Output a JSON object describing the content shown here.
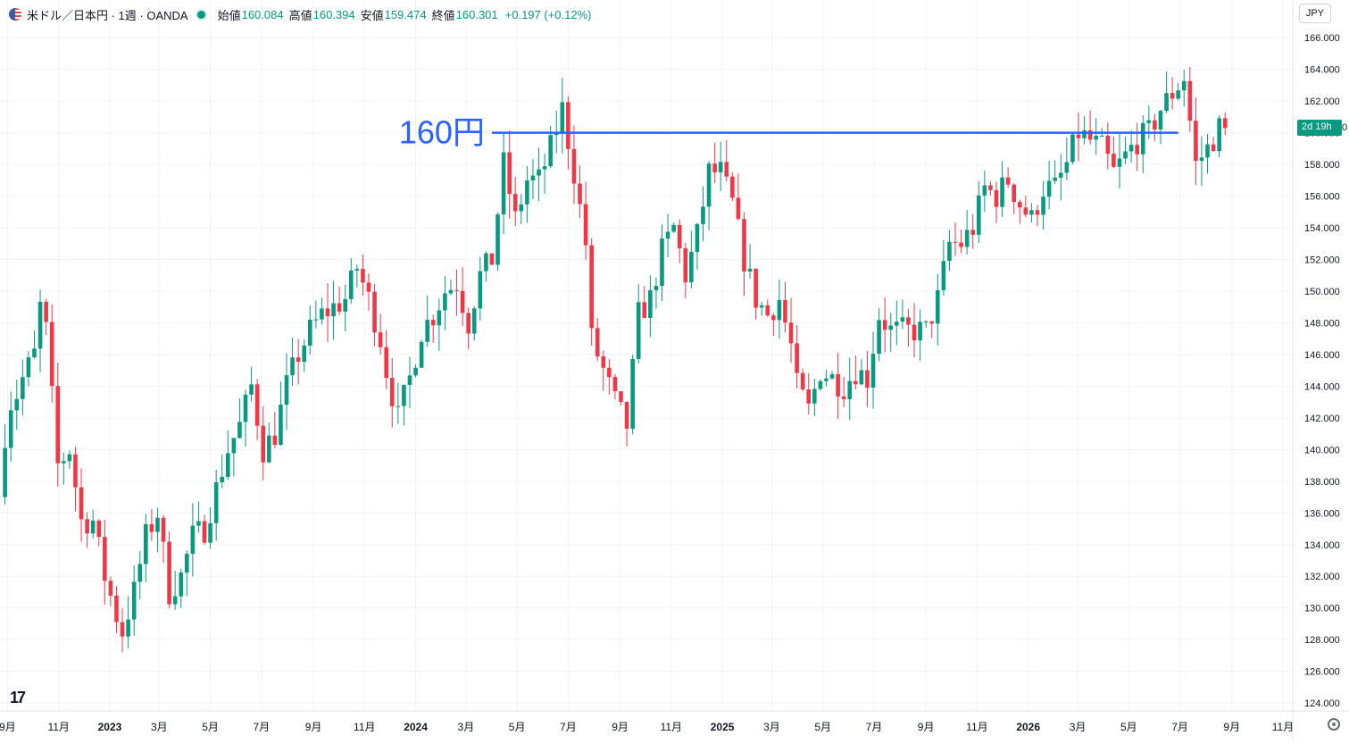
{
  "header": {
    "symbol": "米ドル／日本円 · 1週 · OANDA",
    "ohlc": [
      {
        "label": "始値",
        "value": "160.084"
      },
      {
        "label": "高値",
        "value": "160.394"
      },
      {
        "label": "安値",
        "value": "159.474"
      },
      {
        "label": "終値",
        "value": "160.301"
      }
    ],
    "change": "+0.197 (+0.12%)"
  },
  "currency_button": "JPY",
  "countdown_label": "2d 19h",
  "countdown_tail": "0",
  "colors": {
    "up": "#089981",
    "down": "#f23645",
    "line": "#2962ff",
    "grid": "#f0f3fa"
  },
  "icons": {
    "logo": "tradingview-logo-icon",
    "settings": "gear-icon",
    "flag": "us-flag-icon"
  },
  "logo_text": "17",
  "chart_data": {
    "type": "candlestick",
    "y_ticks": [
      "166.000",
      "164.000",
      "162.000",
      "160.000",
      "158.000",
      "156.000",
      "154.000",
      "152.000",
      "150.000",
      "148.000",
      "146.000",
      "144.000",
      "142.000",
      "140.000",
      "138.000",
      "136.000",
      "134.000",
      "132.000",
      "130.000",
      "128.000",
      "126.000",
      "124.000"
    ],
    "ylim": [
      123.5,
      166.8
    ],
    "x_ticks": [
      {
        "label": "9月",
        "date": "2022-09-01"
      },
      {
        "label": "11月",
        "date": "2022-11-01"
      },
      {
        "label": "2023",
        "date": "2023-01-01"
      },
      {
        "label": "3月",
        "date": "2023-03-01"
      },
      {
        "label": "5月",
        "date": "2023-05-01"
      },
      {
        "label": "7月",
        "date": "2023-07-01"
      },
      {
        "label": "9月",
        "date": "2023-09-01"
      },
      {
        "label": "11月",
        "date": "2023-11-01"
      },
      {
        "label": "2024",
        "date": "2024-01-01"
      },
      {
        "label": "3月",
        "date": "2024-03-01"
      },
      {
        "label": "5月",
        "date": "2024-05-01"
      },
      {
        "label": "7月",
        "date": "2024-07-01"
      },
      {
        "label": "9月",
        "date": "2024-09-01"
      },
      {
        "label": "11月",
        "date": "2024-11-01"
      },
      {
        "label": "2025",
        "date": "2025-01-01"
      },
      {
        "label": "3月",
        "date": "2025-03-01"
      },
      {
        "label": "5月",
        "date": "2025-05-01"
      },
      {
        "label": "7月",
        "date": "2025-07-01"
      },
      {
        "label": "9月",
        "date": "2025-09-01"
      },
      {
        "label": "11月",
        "date": "2025-11-01"
      },
      {
        "label": "2026",
        "date": "2026-01-01"
      },
      {
        "label": "3月",
        "date": "2026-03-01"
      },
      {
        "label": "5月",
        "date": "2026-05-01"
      },
      {
        "label": "7月",
        "date": "2026-07-01"
      },
      {
        "label": "9月",
        "date": "2026-09-01"
      },
      {
        "label": "11月",
        "date": "2026-11-01"
      }
    ],
    "series_path": [
      [
        "2022-08-29",
        137.0
      ],
      [
        "2022-09-05",
        141.0
      ],
      [
        "2022-09-12",
        143.0
      ],
      [
        "2022-09-19",
        143.5
      ],
      [
        "2022-09-26",
        144.5
      ],
      [
        "2022-10-10",
        146.0
      ],
      [
        "2022-10-17",
        149.0
      ],
      [
        "2022-10-24",
        147.5
      ],
      [
        "2022-11-07",
        139.0
      ],
      [
        "2022-11-21",
        140.0
      ],
      [
        "2022-12-05",
        135.5
      ],
      [
        "2022-12-19",
        135.5
      ],
      [
        "2023-01-02",
        132.0
      ],
      [
        "2023-01-16",
        129.5
      ],
      [
        "2023-01-23",
        128.5
      ],
      [
        "2023-02-06",
        131.0
      ],
      [
        "2023-02-20",
        134.5
      ],
      [
        "2023-03-06",
        136.0
      ],
      [
        "2023-03-20",
        131.0
      ],
      [
        "2023-04-03",
        132.0
      ],
      [
        "2023-04-17",
        134.5
      ],
      [
        "2023-05-01",
        135.0
      ],
      [
        "2023-05-15",
        137.5
      ],
      [
        "2023-05-29",
        140.0
      ],
      [
        "2023-06-12",
        141.5
      ],
      [
        "2023-06-26",
        144.0
      ],
      [
        "2023-07-10",
        140.0
      ],
      [
        "2023-07-24",
        141.0
      ],
      [
        "2023-08-07",
        144.0
      ],
      [
        "2023-08-21",
        146.0
      ],
      [
        "2023-09-04",
        147.5
      ],
      [
        "2023-09-18",
        148.5
      ],
      [
        "2023-10-02",
        149.0
      ],
      [
        "2023-10-16",
        149.5
      ],
      [
        "2023-10-30",
        151.5
      ],
      [
        "2023-11-13",
        149.5
      ],
      [
        "2023-11-27",
        147.0
      ],
      [
        "2023-12-04",
        145.0
      ],
      [
        "2023-12-18",
        142.0
      ],
      [
        "2024-01-01",
        144.5
      ],
      [
        "2024-01-15",
        147.5
      ],
      [
        "2024-01-29",
        148.5
      ],
      [
        "2024-02-12",
        150.0
      ],
      [
        "2024-02-26",
        150.5
      ],
      [
        "2024-03-11",
        148.0
      ],
      [
        "2024-03-25",
        151.0
      ],
      [
        "2024-04-08",
        152.0
      ],
      [
        "2024-04-22",
        158.0
      ],
      [
        "2024-05-06",
        154.5
      ],
      [
        "2024-05-20",
        157.0
      ],
      [
        "2024-06-03",
        157.0
      ],
      [
        "2024-06-17",
        159.0
      ],
      [
        "2024-07-01",
        161.5
      ],
      [
        "2024-07-15",
        157.5
      ],
      [
        "2024-07-29",
        153.0
      ],
      [
        "2024-08-05",
        147.0
      ],
      [
        "2024-08-19",
        145.0
      ],
      [
        "2024-09-02",
        143.0
      ],
      [
        "2024-09-16",
        141.5
      ],
      [
        "2024-09-30",
        148.5
      ],
      [
        "2024-10-14",
        149.5
      ],
      [
        "2024-10-28",
        152.5
      ],
      [
        "2024-11-11",
        154.0
      ],
      [
        "2024-11-25",
        151.0
      ],
      [
        "2024-12-09",
        153.5
      ],
      [
        "2024-12-23",
        157.5
      ],
      [
        "2025-01-06",
        157.5
      ],
      [
        "2025-01-20",
        155.5
      ],
      [
        "2025-02-03",
        152.0
      ],
      [
        "2025-02-17",
        149.5
      ],
      [
        "2025-03-03",
        148.5
      ],
      [
        "2025-03-17",
        149.5
      ],
      [
        "2025-03-31",
        146.5
      ],
      [
        "2025-04-07",
        144.0
      ],
      [
        "2025-04-21",
        142.5
      ],
      [
        "2025-05-05",
        145.0
      ],
      [
        "2025-05-19",
        144.5
      ],
      [
        "2025-06-02",
        144.0
      ],
      [
        "2025-06-16",
        145.0
      ],
      [
        "2025-06-30",
        144.5
      ],
      [
        "2025-07-14",
        148.5
      ],
      [
        "2025-07-28",
        147.5
      ],
      [
        "2025-08-11",
        147.5
      ],
      [
        "2025-08-25",
        147.5
      ],
      [
        "2025-09-08",
        147.5
      ],
      [
        "2025-09-22",
        149.5
      ],
      [
        "2025-10-06",
        153.0
      ],
      [
        "2025-10-20",
        153.0
      ],
      [
        "2025-11-03",
        154.0
      ],
      [
        "2025-11-17",
        156.5
      ],
      [
        "2025-12-01",
        156.0
      ],
      [
        "2025-12-15",
        157.0
      ],
      [
        "2025-12-29",
        155.5
      ],
      [
        "2026-01-12",
        154.5
      ],
      [
        "2026-01-26",
        156.5
      ],
      [
        "2026-02-09",
        156.5
      ],
      [
        "2026-02-23",
        158.0
      ],
      [
        "2026-03-09",
        160.0
      ],
      [
        "2026-03-23",
        159.5
      ],
      [
        "2026-04-06",
        159.0
      ],
      [
        "2026-04-20",
        157.5
      ],
      [
        "2026-05-04",
        158.5
      ],
      [
        "2026-05-18",
        159.5
      ],
      [
        "2026-06-01",
        160.0
      ],
      [
        "2026-06-15",
        161.5
      ],
      [
        "2026-06-29",
        162.5
      ],
      [
        "2026-07-13",
        163.5
      ],
      [
        "2026-07-27",
        158.0
      ],
      [
        "2026-08-10",
        159.0
      ],
      [
        "2026-08-24",
        160.3
      ]
    ],
    "volatility": 1.8,
    "annotations": [
      {
        "text": "160円",
        "price": 160.0,
        "start": "2024-04-01",
        "end": "2026-06-29",
        "color": "#2962ff"
      }
    ]
  }
}
